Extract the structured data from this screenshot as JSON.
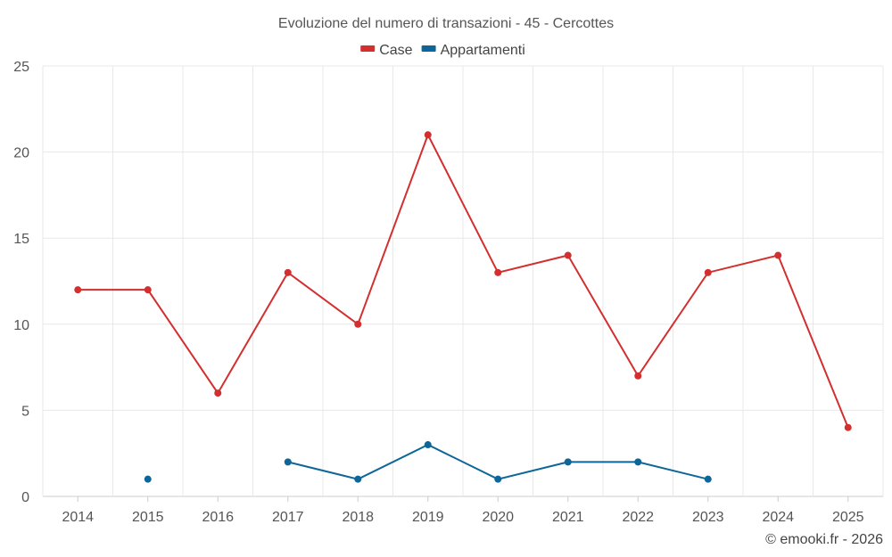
{
  "chart_data": {
    "type": "line",
    "title": "Evoluzione del numero di transazioni - 45 - Cercottes",
    "categories": [
      "2014",
      "2015",
      "2016",
      "2017",
      "2018",
      "2019",
      "2020",
      "2021",
      "2022",
      "2023",
      "2024",
      "2025"
    ],
    "series": [
      {
        "name": "Case",
        "color": "#d32f2f",
        "values": [
          12,
          12,
          6,
          13,
          10,
          21,
          13,
          14,
          7,
          13,
          14,
          4
        ]
      },
      {
        "name": "Appartamenti",
        "color": "#0d6699",
        "values": [
          null,
          1,
          null,
          2,
          1,
          3,
          1,
          2,
          2,
          1,
          null,
          null
        ]
      }
    ],
    "ylim": [
      0,
      25
    ],
    "yticks": [
      0,
      5,
      10,
      15,
      20,
      25
    ],
    "grid": true,
    "legend": "top-center",
    "xlabel": "",
    "ylabel": ""
  },
  "credit": "© emooki.fr - 2026"
}
